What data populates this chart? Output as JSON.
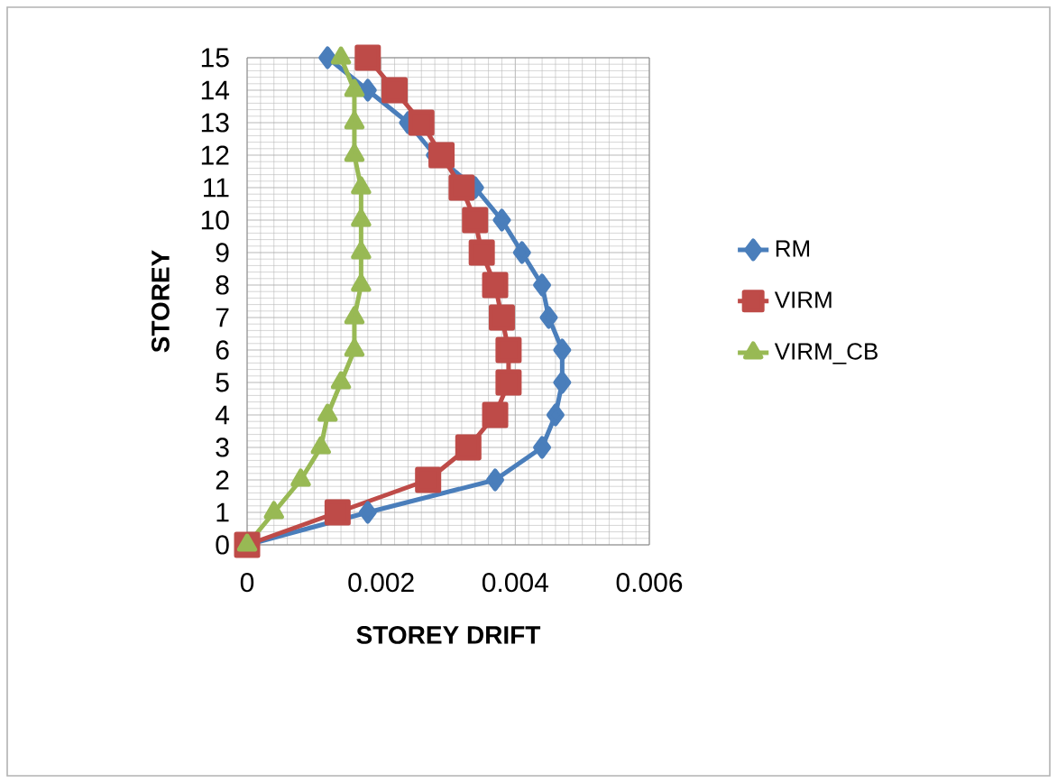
{
  "chart_data": {
    "type": "line",
    "xlabel": "STOREY DRIFT",
    "ylabel": "STOREY",
    "xlim": [
      0,
      0.006
    ],
    "xticks": [
      0,
      0.002,
      0.004,
      0.006
    ],
    "ylim": [
      0,
      15
    ],
    "yticks": [
      0,
      1,
      2,
      3,
      4,
      5,
      6,
      7,
      8,
      9,
      10,
      11,
      12,
      13,
      14,
      15
    ],
    "grid": true,
    "legend": "right",
    "line_style": "solid",
    "series": [
      {
        "name": "RM",
        "color": "#4a7ebb",
        "marker": "diamond",
        "x": [
          0,
          0.0018,
          0.0037,
          0.0044,
          0.0046,
          0.0047,
          0.0047,
          0.0045,
          0.0044,
          0.0041,
          0.0038,
          0.0034,
          0.0028,
          0.0024,
          0.0018,
          0.0012
        ],
        "values": [
          0,
          1,
          2,
          3,
          4,
          5,
          6,
          7,
          8,
          9,
          10,
          11,
          12,
          13,
          14,
          15
        ]
      },
      {
        "name": "VIRM",
        "color": "#be4b48",
        "marker": "square",
        "x": [
          0,
          0.00135,
          0.0027,
          0.0033,
          0.0037,
          0.0039,
          0.0039,
          0.0038,
          0.0037,
          0.0035,
          0.0034,
          0.0032,
          0.0029,
          0.0026,
          0.0022,
          0.0018
        ],
        "values": [
          0,
          1,
          2,
          3,
          4,
          5,
          6,
          7,
          8,
          9,
          10,
          11,
          12,
          13,
          14,
          15
        ]
      },
      {
        "name": "VIRM_CB",
        "color": "#98b954",
        "marker": "triangle",
        "x": [
          0,
          0.0004,
          0.0008,
          0.0011,
          0.0012,
          0.0014,
          0.0016,
          0.0016,
          0.0017,
          0.0017,
          0.0017,
          0.0017,
          0.0016,
          0.0016,
          0.0016,
          0.0014
        ],
        "values": [
          0,
          1,
          2,
          3,
          4,
          5,
          6,
          7,
          8,
          9,
          10,
          11,
          12,
          13,
          14,
          15
        ]
      }
    ]
  }
}
